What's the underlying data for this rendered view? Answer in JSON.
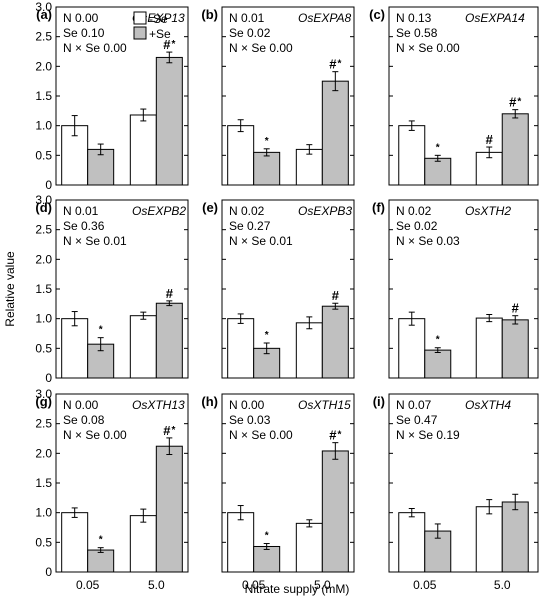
{
  "figure": {
    "ylabel": "Relative value",
    "xlabel": "Nitrate supply (mM)",
    "legend": [
      {
        "label": "-Se",
        "color": "#ffffff"
      },
      {
        "label": "+Se",
        "color": "#c0c0c0"
      }
    ]
  },
  "chart_data": [
    {
      "type": "bar",
      "panel": "(a)",
      "gene": "OsEXP13",
      "stats": [
        "N 0.00",
        "Se 0.10",
        "N × Se 0.00"
      ],
      "categories": [
        "0.05",
        "5.0"
      ],
      "ylim": [
        0,
        3.0
      ],
      "yticks": [
        "0",
        "0.5",
        "1.0",
        "1.5",
        "2.0",
        "2.5",
        "3.0"
      ],
      "series": [
        {
          "name": "-Se",
          "values": [
            1.0,
            1.18
          ],
          "errors": [
            0.17,
            0.1
          ],
          "marks": [
            "",
            ""
          ]
        },
        {
          "name": "+Se",
          "values": [
            0.6,
            2.15
          ],
          "errors": [
            0.09,
            0.09
          ],
          "marks": [
            "",
            "#*"
          ]
        }
      ]
    },
    {
      "type": "bar",
      "panel": "(b)",
      "gene": "OsEXPA8",
      "stats": [
        "N 0.01",
        "Se 0.02",
        "N × Se 0.00"
      ],
      "categories": [
        "0.05",
        "5.0"
      ],
      "ylim": [
        0,
        3.0
      ],
      "yticks": [],
      "series": [
        {
          "name": "-Se",
          "values": [
            1.0,
            0.6
          ],
          "errors": [
            0.1,
            0.08
          ],
          "marks": [
            "",
            ""
          ]
        },
        {
          "name": "+Se",
          "values": [
            0.55,
            1.75
          ],
          "errors": [
            0.06,
            0.16
          ],
          "marks": [
            "*",
            "#*"
          ]
        }
      ]
    },
    {
      "type": "bar",
      "panel": "(c)",
      "gene": "OsEXPA14",
      "stats": [
        "N 0.13",
        "Se 0.58",
        "N × Se 0.00"
      ],
      "categories": [
        "0.05",
        "5.0"
      ],
      "ylim": [
        0,
        3.0
      ],
      "yticks": [],
      "series": [
        {
          "name": "-Se",
          "values": [
            1.0,
            0.55
          ],
          "errors": [
            0.08,
            0.09
          ],
          "marks": [
            "",
            "#"
          ]
        },
        {
          "name": "+Se",
          "values": [
            0.45,
            1.2
          ],
          "errors": [
            0.05,
            0.07
          ],
          "marks": [
            "*",
            "#*"
          ]
        }
      ]
    },
    {
      "type": "bar",
      "panel": "(d)",
      "gene": "OsEXPB2",
      "stats": [
        "N 0.01",
        "Se 0.36",
        "N × Se 0.01"
      ],
      "categories": [
        "0.05",
        "5.0"
      ],
      "ylim": [
        0,
        3.0
      ],
      "yticks": [
        "0",
        "0.5",
        "1.0",
        "1.5",
        "2.0",
        "2.5",
        "3.0"
      ],
      "series": [
        {
          "name": "-Se",
          "values": [
            1.0,
            1.05
          ],
          "errors": [
            0.12,
            0.06
          ],
          "marks": [
            "",
            ""
          ]
        },
        {
          "name": "+Se",
          "values": [
            0.57,
            1.26
          ],
          "errors": [
            0.11,
            0.04
          ],
          "marks": [
            "*",
            "#"
          ]
        }
      ]
    },
    {
      "type": "bar",
      "panel": "(e)",
      "gene": "OsEXPB3",
      "stats": [
        "N 0.02",
        "Se 0.27",
        "N × Se 0.01"
      ],
      "categories": [
        "0.05",
        "5.0"
      ],
      "ylim": [
        0,
        3.0
      ],
      "yticks": [],
      "series": [
        {
          "name": "-Se",
          "values": [
            1.0,
            0.93
          ],
          "errors": [
            0.08,
            0.1
          ],
          "marks": [
            "",
            ""
          ]
        },
        {
          "name": "+Se",
          "values": [
            0.5,
            1.21
          ],
          "errors": [
            0.09,
            0.05
          ],
          "marks": [
            "*",
            "#"
          ]
        }
      ]
    },
    {
      "type": "bar",
      "panel": "(f)",
      "gene": "OsXTH2",
      "stats": [
        "N 0.02",
        "Se 0.02",
        "N × Se 0.03"
      ],
      "categories": [
        "0.05",
        "5.0"
      ],
      "ylim": [
        0,
        3.0
      ],
      "yticks": [],
      "series": [
        {
          "name": "-Se",
          "values": [
            1.0,
            1.01
          ],
          "errors": [
            0.11,
            0.06
          ],
          "marks": [
            "",
            ""
          ]
        },
        {
          "name": "+Se",
          "values": [
            0.47,
            0.98
          ],
          "errors": [
            0.04,
            0.07
          ],
          "marks": [
            "*",
            "#"
          ]
        }
      ]
    },
    {
      "type": "bar",
      "panel": "(g)",
      "gene": "OsXTH13",
      "stats": [
        "N 0.00",
        "Se 0.08",
        "N × Se 0.00"
      ],
      "categories": [
        "0.05",
        "5.0"
      ],
      "ylim": [
        0,
        3.0
      ],
      "yticks": [
        "0",
        "0.5",
        "1.0",
        "1.5",
        "2.0",
        "2.5",
        "3.0"
      ],
      "series": [
        {
          "name": "-Se",
          "values": [
            1.0,
            0.95
          ],
          "errors": [
            0.08,
            0.11
          ],
          "marks": [
            "",
            ""
          ]
        },
        {
          "name": "+Se",
          "values": [
            0.37,
            2.12
          ],
          "errors": [
            0.04,
            0.14
          ],
          "marks": [
            "*",
            "#*"
          ]
        }
      ]
    },
    {
      "type": "bar",
      "panel": "(h)",
      "gene": "OsXTH15",
      "stats": [
        "N 0.00",
        "Se 0.03",
        "N × Se 0.00"
      ],
      "categories": [
        "0.05",
        "5.0"
      ],
      "ylim": [
        0,
        3.0
      ],
      "yticks": [],
      "series": [
        {
          "name": "-Se",
          "values": [
            1.0,
            0.82
          ],
          "errors": [
            0.12,
            0.06
          ],
          "marks": [
            "",
            ""
          ]
        },
        {
          "name": "+Se",
          "values": [
            0.43,
            2.04
          ],
          "errors": [
            0.05,
            0.14
          ],
          "marks": [
            "*",
            "#*"
          ]
        }
      ]
    },
    {
      "type": "bar",
      "panel": "(i)",
      "gene": "OsXTH4",
      "stats": [
        "N 0.07",
        "Se 0.47",
        "N × Se 0.19"
      ],
      "categories": [
        "0.05",
        "5.0"
      ],
      "ylim": [
        0,
        3.0
      ],
      "yticks": [],
      "series": [
        {
          "name": "-Se",
          "values": [
            1.0,
            1.1
          ],
          "errors": [
            0.07,
            0.12
          ],
          "marks": [
            "",
            ""
          ]
        },
        {
          "name": "+Se",
          "values": [
            0.69,
            1.18
          ],
          "errors": [
            0.12,
            0.13
          ],
          "marks": [
            "",
            ""
          ]
        }
      ]
    }
  ]
}
